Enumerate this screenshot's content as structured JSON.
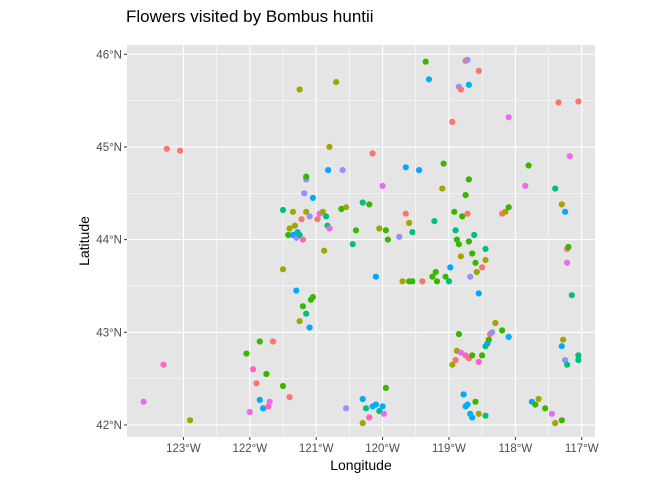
{
  "chart_data": {
    "type": "scatter",
    "title": "Flowers visited by Bombus huntii",
    "xlabel": "Longitude",
    "ylabel": "Latitude",
    "xlim": [
      -123.85,
      -116.8
    ],
    "ylim": [
      41.87,
      46.1
    ],
    "x_ticks": [
      -123,
      -122,
      -121,
      -120,
      -119,
      -118,
      -117
    ],
    "x_tick_labels": [
      "123°W",
      "122°W",
      "121°W",
      "120°W",
      "119°W",
      "118°W",
      "117°W"
    ],
    "y_ticks": [
      42,
      43,
      44,
      45,
      46
    ],
    "y_tick_labels": [
      "42°N",
      "43°N",
      "44°N",
      "45°N",
      "46°N"
    ],
    "grid": true,
    "legend": "none",
    "panel_background": "#e5e5e5",
    "grid_color": "#ffffff",
    "colors": {
      "red": "#F8766D",
      "olive": "#A3A500",
      "green": "#00BF7D",
      "green2": "#39B600",
      "teal": "#00B0F6",
      "blue": "#00A9FF",
      "purple": "#9590FF",
      "magenta": "#E76BF3",
      "pink": "#FF62BC"
    },
    "points": [
      {
        "x": -123.6,
        "y": 42.25,
        "c": "magenta"
      },
      {
        "x": -123.3,
        "y": 42.65,
        "c": "pink"
      },
      {
        "x": -122.9,
        "y": 42.05,
        "c": "olive"
      },
      {
        "x": -123.25,
        "y": 44.98,
        "c": "red"
      },
      {
        "x": -123.05,
        "y": 44.96,
        "c": "red"
      },
      {
        "x": -122.05,
        "y": 42.77,
        "c": "green2"
      },
      {
        "x": -122.0,
        "y": 42.14,
        "c": "magenta"
      },
      {
        "x": -121.95,
        "y": 42.6,
        "c": "pink"
      },
      {
        "x": -121.9,
        "y": 42.45,
        "c": "red"
      },
      {
        "x": -121.85,
        "y": 42.27,
        "c": "blue"
      },
      {
        "x": -121.85,
        "y": 42.9,
        "c": "green2"
      },
      {
        "x": -121.8,
        "y": 42.18,
        "c": "blue"
      },
      {
        "x": -121.75,
        "y": 42.55,
        "c": "green2"
      },
      {
        "x": -121.72,
        "y": 42.2,
        "c": "pink"
      },
      {
        "x": -121.7,
        "y": 42.25,
        "c": "magenta"
      },
      {
        "x": -121.65,
        "y": 42.9,
        "c": "red"
      },
      {
        "x": -121.5,
        "y": 42.42,
        "c": "green2"
      },
      {
        "x": -121.4,
        "y": 42.3,
        "c": "red"
      },
      {
        "x": -121.5,
        "y": 43.68,
        "c": "olive"
      },
      {
        "x": -121.5,
        "y": 44.32,
        "c": "green"
      },
      {
        "x": -121.42,
        "y": 44.05,
        "c": "green2"
      },
      {
        "x": -121.4,
        "y": 44.12,
        "c": "olive"
      },
      {
        "x": -121.35,
        "y": 44.3,
        "c": "olive"
      },
      {
        "x": -121.35,
        "y": 44.05,
        "c": "blue"
      },
      {
        "x": -121.32,
        "y": 44.15,
        "c": "olive"
      },
      {
        "x": -121.3,
        "y": 44.02,
        "c": "purple"
      },
      {
        "x": -121.28,
        "y": 44.08,
        "c": "blue"
      },
      {
        "x": -121.25,
        "y": 44.05,
        "c": "green"
      },
      {
        "x": -121.22,
        "y": 44.22,
        "c": "red"
      },
      {
        "x": -121.2,
        "y": 44.0,
        "c": "pink"
      },
      {
        "x": -121.18,
        "y": 44.5,
        "c": "purple"
      },
      {
        "x": -121.15,
        "y": 44.65,
        "c": "purple"
      },
      {
        "x": -121.15,
        "y": 44.68,
        "c": "green2"
      },
      {
        "x": -121.15,
        "y": 44.3,
        "c": "olive"
      },
      {
        "x": -121.1,
        "y": 44.25,
        "c": "purple"
      },
      {
        "x": -121.05,
        "y": 44.45,
        "c": "blue"
      },
      {
        "x": -121.25,
        "y": 45.62,
        "c": "olive"
      },
      {
        "x": -121.3,
        "y": 43.45,
        "c": "blue"
      },
      {
        "x": -121.25,
        "y": 43.12,
        "c": "olive"
      },
      {
        "x": -121.2,
        "y": 43.28,
        "c": "green2"
      },
      {
        "x": -121.15,
        "y": 43.2,
        "c": "green"
      },
      {
        "x": -121.1,
        "y": 43.05,
        "c": "blue"
      },
      {
        "x": -121.08,
        "y": 43.35,
        "c": "green2"
      },
      {
        "x": -121.05,
        "y": 43.38,
        "c": "green2"
      },
      {
        "x": -120.98,
        "y": 44.22,
        "c": "red"
      },
      {
        "x": -120.95,
        "y": 44.28,
        "c": "magenta"
      },
      {
        "x": -120.9,
        "y": 44.3,
        "c": "olive"
      },
      {
        "x": -120.88,
        "y": 43.88,
        "c": "olive"
      },
      {
        "x": -120.85,
        "y": 44.25,
        "c": "green"
      },
      {
        "x": -120.83,
        "y": 44.15,
        "c": "green"
      },
      {
        "x": -120.8,
        "y": 44.12,
        "c": "magenta"
      },
      {
        "x": -120.82,
        "y": 44.75,
        "c": "blue"
      },
      {
        "x": -120.8,
        "y": 45.0,
        "c": "olive"
      },
      {
        "x": -120.7,
        "y": 45.7,
        "c": "olive"
      },
      {
        "x": -120.6,
        "y": 44.75,
        "c": "purple"
      },
      {
        "x": -120.62,
        "y": 44.33,
        "c": "green2"
      },
      {
        "x": -120.55,
        "y": 44.35,
        "c": "olive"
      },
      {
        "x": -120.45,
        "y": 43.95,
        "c": "green"
      },
      {
        "x": -120.4,
        "y": 44.1,
        "c": "green2"
      },
      {
        "x": -120.3,
        "y": 44.4,
        "c": "green"
      },
      {
        "x": -120.2,
        "y": 44.38,
        "c": "green2"
      },
      {
        "x": -120.15,
        "y": 44.93,
        "c": "red"
      },
      {
        "x": -120.1,
        "y": 43.6,
        "c": "blue"
      },
      {
        "x": -120.05,
        "y": 44.12,
        "c": "olive"
      },
      {
        "x": -120.0,
        "y": 44.58,
        "c": "magenta"
      },
      {
        "x": -119.95,
        "y": 44.1,
        "c": "green2"
      },
      {
        "x": -119.92,
        "y": 44.0,
        "c": "green2"
      },
      {
        "x": -119.75,
        "y": 44.03,
        "c": "purple"
      },
      {
        "x": -119.65,
        "y": 44.28,
        "c": "red"
      },
      {
        "x": -119.65,
        "y": 44.78,
        "c": "blue"
      },
      {
        "x": -119.7,
        "y": 43.55,
        "c": "olive"
      },
      {
        "x": -119.6,
        "y": 44.18,
        "c": "olive"
      },
      {
        "x": -119.6,
        "y": 43.55,
        "c": "green2"
      },
      {
        "x": -119.55,
        "y": 43.55,
        "c": "green2"
      },
      {
        "x": -119.55,
        "y": 44.08,
        "c": "green"
      },
      {
        "x": -119.45,
        "y": 44.75,
        "c": "blue"
      },
      {
        "x": -119.4,
        "y": 43.55,
        "c": "red"
      },
      {
        "x": -119.35,
        "y": 45.92,
        "c": "green2"
      },
      {
        "x": -119.3,
        "y": 45.73,
        "c": "teal"
      },
      {
        "x": -119.25,
        "y": 43.6,
        "c": "green2"
      },
      {
        "x": -119.22,
        "y": 44.2,
        "c": "green"
      },
      {
        "x": -119.2,
        "y": 43.65,
        "c": "green2"
      },
      {
        "x": -119.18,
        "y": 43.55,
        "c": "green2"
      },
      {
        "x": -119.1,
        "y": 44.55,
        "c": "olive"
      },
      {
        "x": -119.08,
        "y": 44.82,
        "c": "green2"
      },
      {
        "x": -119.05,
        "y": 43.6,
        "c": "green2"
      },
      {
        "x": -119.0,
        "y": 43.55,
        "c": "green"
      },
      {
        "x": -118.98,
        "y": 43.7,
        "c": "blue"
      },
      {
        "x": -120.55,
        "y": 42.18,
        "c": "purple"
      },
      {
        "x": -120.3,
        "y": 42.28,
        "c": "blue"
      },
      {
        "x": -120.3,
        "y": 42.02,
        "c": "olive"
      },
      {
        "x": -120.25,
        "y": 42.18,
        "c": "green"
      },
      {
        "x": -120.2,
        "y": 42.08,
        "c": "pink"
      },
      {
        "x": -120.15,
        "y": 42.2,
        "c": "teal"
      },
      {
        "x": -120.1,
        "y": 42.22,
        "c": "blue"
      },
      {
        "x": -120.05,
        "y": 42.15,
        "c": "green"
      },
      {
        "x": -120.0,
        "y": 42.2,
        "c": "teal"
      },
      {
        "x": -119.98,
        "y": 42.12,
        "c": "magenta"
      },
      {
        "x": -119.95,
        "y": 42.4,
        "c": "green2"
      },
      {
        "x": -118.95,
        "y": 45.27,
        "c": "red"
      },
      {
        "x": -118.85,
        "y": 45.65,
        "c": "purple"
      },
      {
        "x": -118.82,
        "y": 45.62,
        "c": "red"
      },
      {
        "x": -118.75,
        "y": 45.93,
        "c": "red"
      },
      {
        "x": -118.72,
        "y": 45.94,
        "c": "purple"
      },
      {
        "x": -118.7,
        "y": 45.67,
        "c": "teal"
      },
      {
        "x": -118.55,
        "y": 45.82,
        "c": "red"
      },
      {
        "x": -118.92,
        "y": 44.3,
        "c": "green2"
      },
      {
        "x": -118.9,
        "y": 44.1,
        "c": "green"
      },
      {
        "x": -118.88,
        "y": 44.0,
        "c": "green2"
      },
      {
        "x": -118.85,
        "y": 43.95,
        "c": "green2"
      },
      {
        "x": -118.82,
        "y": 43.82,
        "c": "olive"
      },
      {
        "x": -118.8,
        "y": 44.25,
        "c": "green2"
      },
      {
        "x": -118.75,
        "y": 44.48,
        "c": "green2"
      },
      {
        "x": -118.72,
        "y": 44.28,
        "c": "red"
      },
      {
        "x": -118.7,
        "y": 44.65,
        "c": "green2"
      },
      {
        "x": -118.7,
        "y": 43.98,
        "c": "green2"
      },
      {
        "x": -118.68,
        "y": 43.6,
        "c": "purple"
      },
      {
        "x": -118.65,
        "y": 43.85,
        "c": "green2"
      },
      {
        "x": -118.62,
        "y": 44.05,
        "c": "green"
      },
      {
        "x": -118.6,
        "y": 43.75,
        "c": "green2"
      },
      {
        "x": -118.58,
        "y": 43.65,
        "c": "olive"
      },
      {
        "x": -118.55,
        "y": 43.42,
        "c": "blue"
      },
      {
        "x": -118.5,
        "y": 43.7,
        "c": "red"
      },
      {
        "x": -118.45,
        "y": 43.9,
        "c": "green"
      },
      {
        "x": -118.45,
        "y": 43.78,
        "c": "olive"
      },
      {
        "x": -118.2,
        "y": 44.28,
        "c": "red"
      },
      {
        "x": -118.15,
        "y": 44.3,
        "c": "olive"
      },
      {
        "x": -118.1,
        "y": 44.35,
        "c": "green2"
      },
      {
        "x": -118.1,
        "y": 45.32,
        "c": "magenta"
      },
      {
        "x": -117.85,
        "y": 44.58,
        "c": "magenta"
      },
      {
        "x": -117.8,
        "y": 44.8,
        "c": "green2"
      },
      {
        "x": -118.95,
        "y": 42.65,
        "c": "olive"
      },
      {
        "x": -118.9,
        "y": 42.7,
        "c": "red"
      },
      {
        "x": -118.88,
        "y": 42.8,
        "c": "olive"
      },
      {
        "x": -118.85,
        "y": 42.98,
        "c": "green2"
      },
      {
        "x": -118.82,
        "y": 42.78,
        "c": "magenta"
      },
      {
        "x": -118.78,
        "y": 42.33,
        "c": "blue"
      },
      {
        "x": -118.75,
        "y": 42.2,
        "c": "blue"
      },
      {
        "x": -118.72,
        "y": 42.22,
        "c": "teal"
      },
      {
        "x": -118.75,
        "y": 42.75,
        "c": "pink"
      },
      {
        "x": -118.7,
        "y": 42.72,
        "c": "red"
      },
      {
        "x": -118.65,
        "y": 42.75,
        "c": "green2"
      },
      {
        "x": -118.68,
        "y": 42.12,
        "c": "teal"
      },
      {
        "x": -118.65,
        "y": 42.08,
        "c": "blue"
      },
      {
        "x": -118.6,
        "y": 42.25,
        "c": "green2"
      },
      {
        "x": -118.55,
        "y": 42.68,
        "c": "pink"
      },
      {
        "x": -118.5,
        "y": 42.75,
        "c": "green2"
      },
      {
        "x": -118.45,
        "y": 42.85,
        "c": "green"
      },
      {
        "x": -118.42,
        "y": 42.88,
        "c": "blue"
      },
      {
        "x": -118.4,
        "y": 42.92,
        "c": "green2"
      },
      {
        "x": -118.38,
        "y": 42.98,
        "c": "red"
      },
      {
        "x": -118.35,
        "y": 43.0,
        "c": "purple"
      },
      {
        "x": -118.3,
        "y": 43.1,
        "c": "olive"
      },
      {
        "x": -118.2,
        "y": 43.02,
        "c": "green2"
      },
      {
        "x": -118.1,
        "y": 42.95,
        "c": "teal"
      },
      {
        "x": -118.55,
        "y": 42.12,
        "c": "olive"
      },
      {
        "x": -118.45,
        "y": 42.1,
        "c": "green"
      },
      {
        "x": -117.75,
        "y": 42.25,
        "c": "blue"
      },
      {
        "x": -117.7,
        "y": 42.22,
        "c": "green2"
      },
      {
        "x": -117.65,
        "y": 42.28,
        "c": "olive"
      },
      {
        "x": -117.55,
        "y": 42.18,
        "c": "green2"
      },
      {
        "x": -117.45,
        "y": 42.12,
        "c": "magenta"
      },
      {
        "x": -117.4,
        "y": 42.02,
        "c": "olive"
      },
      {
        "x": -117.3,
        "y": 42.05,
        "c": "green2"
      },
      {
        "x": -117.4,
        "y": 44.55,
        "c": "green"
      },
      {
        "x": -117.35,
        "y": 45.48,
        "c": "red"
      },
      {
        "x": -117.3,
        "y": 44.38,
        "c": "olive"
      },
      {
        "x": -117.25,
        "y": 44.3,
        "c": "blue"
      },
      {
        "x": -117.22,
        "y": 43.9,
        "c": "red"
      },
      {
        "x": -117.2,
        "y": 43.92,
        "c": "green2"
      },
      {
        "x": -117.22,
        "y": 43.75,
        "c": "magenta"
      },
      {
        "x": -117.18,
        "y": 44.9,
        "c": "magenta"
      },
      {
        "x": -117.15,
        "y": 43.4,
        "c": "green"
      },
      {
        "x": -117.05,
        "y": 45.49,
        "c": "red"
      },
      {
        "x": -117.3,
        "y": 42.85,
        "c": "blue"
      },
      {
        "x": -117.28,
        "y": 42.92,
        "c": "olive"
      },
      {
        "x": -117.25,
        "y": 42.7,
        "c": "purple"
      },
      {
        "x": -117.22,
        "y": 42.65,
        "c": "green"
      },
      {
        "x": -117.05,
        "y": 42.7,
        "c": "green"
      },
      {
        "x": -117.05,
        "y": 42.75,
        "c": "green"
      }
    ]
  }
}
